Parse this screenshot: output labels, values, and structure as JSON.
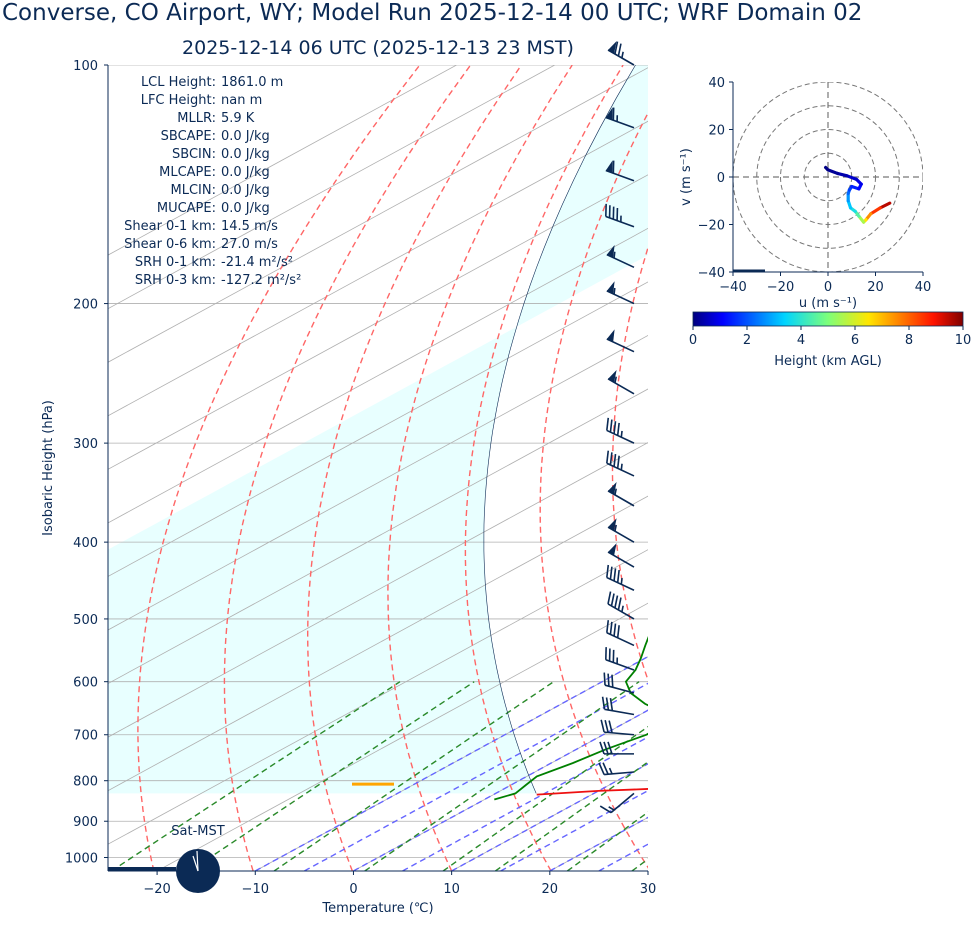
{
  "title": "Converse, CO Airport, WY; Model Run 2025-12-14 00 UTC; WRF Domain 02",
  "subtitle": "2025-12-14 06 UTC  (2025-12-13 23 MST)",
  "colors": {
    "temperature": "#ee1111",
    "dewpoint": "#008000",
    "dry_adiabat": "#ff6666",
    "moist_adiabat": "#6666ff",
    "mixing_ratio": "#2a8a2a",
    "parcel_shade": "#e8ffff",
    "lcl_marker": "#ffa500",
    "text": "#0b2a55"
  },
  "indices": [
    {
      "label": "LCL Height:",
      "value": "1861.0 m"
    },
    {
      "label": "LFC Height:",
      "value": "nan m"
    },
    {
      "label": "MLLR:",
      "value": "5.9 K"
    },
    {
      "label": "SBCAPE:",
      "value": "0.0 J/kg"
    },
    {
      "label": "SBCIN:",
      "value": "0.0 J/kg"
    },
    {
      "label": "MLCAPE:",
      "value": "0.0 J/kg"
    },
    {
      "label": "MLCIN:",
      "value": "0.0 J/kg"
    },
    {
      "label": "MUCAPE:",
      "value": "0.0 J/kg"
    },
    {
      "label": "Shear 0-1 km:",
      "value": "14.5 m/s"
    },
    {
      "label": "Shear 0-6 km:",
      "value": "27.0 m/s"
    },
    {
      "label": "SRH 0-1 km:",
      "value": "-21.4 m²/s²"
    },
    {
      "label": "SRH 0-3 km:",
      "value": "-127.2 m²/s²"
    }
  ],
  "clock_label": "Sat-MST",
  "chart_data": [
    {
      "type": "line",
      "subtype": "skew-T log-p",
      "xlabel": "Temperature (℃)",
      "ylabel": "Isobaric Height (hPa)",
      "xlim": [
        -25,
        30
      ],
      "ylim": [
        1040,
        100
      ],
      "y_scale": "log",
      "x_ticks": [
        -20,
        -10,
        0,
        10,
        20,
        30
      ],
      "y_ticks": [
        100,
        200,
        300,
        400,
        500,
        600,
        700,
        800,
        900,
        1000
      ],
      "series": [
        {
          "role": "temperature",
          "points": [
            [
              833,
              4.4
            ],
            [
              824,
              10
            ],
            [
              818,
              16
            ],
            [
              808,
              17.3
            ],
            [
              785,
              17.5
            ],
            [
              760,
              16.5
            ],
            [
              735,
              15
            ],
            [
              710,
              14.8
            ],
            [
              680,
              14.6
            ],
            [
              650,
              14.4
            ],
            [
              630,
              14.3
            ],
            [
              600,
              14.0
            ],
            [
              575,
              13.3
            ],
            [
              550,
              12.5
            ],
            [
              520,
              11.5
            ],
            [
              490,
              10.3
            ],
            [
              460,
              9.2
            ],
            [
              440,
              7.9
            ],
            [
              420,
              6.3
            ],
            [
              400,
              4.6
            ],
            [
              370,
              2.3
            ],
            [
              340,
              -0.7
            ],
            [
              310,
              -3.8
            ],
            [
              280,
              -7.1
            ],
            [
              250,
              -10.8
            ],
            [
              225,
              -13.2
            ],
            [
              210,
              -15.2
            ],
            [
              195,
              -17.7
            ],
            [
              180,
              -17.8
            ],
            [
              165,
              -15.8
            ],
            [
              150,
              -13.3
            ],
            [
              135,
              -10.6
            ],
            [
              120,
              -7.4
            ],
            [
              110,
              -4.8
            ],
            [
              100,
              -3.5
            ]
          ]
        },
        {
          "role": "dewpoint",
          "points": [
            [
              845,
              1.0
            ],
            [
              830,
              2.0
            ],
            [
              810,
              1.5
            ],
            [
              790,
              1.0
            ],
            [
              760,
              2.2
            ],
            [
              730,
              3.0
            ],
            [
              700,
              4.4
            ],
            [
              680,
              4.3
            ],
            [
              660,
              2.8
            ],
            [
              640,
              -1.5
            ],
            [
              620,
              -5.0
            ],
            [
              600,
              -7.6
            ],
            [
              580,
              -8.8
            ],
            [
              560,
              -10.5
            ],
            [
              540,
              -12.4
            ],
            [
              520,
              -14.3
            ],
            [
              500,
              -16.3
            ],
            [
              480,
              -17.0
            ],
            [
              455,
              -15.8
            ],
            [
              430,
              -13.0
            ],
            [
              400,
              -9.0
            ],
            [
              380,
              -5.8
            ],
            [
              360,
              -5.7
            ],
            [
              340,
              -7.6
            ],
            [
              310,
              -10.4
            ],
            [
              280,
              -13.7
            ],
            [
              260,
              -16.2
            ],
            [
              240,
              -19.0
            ],
            [
              220,
              -21.8
            ],
            [
              200,
              -24.6
            ],
            [
              180,
              -27.8
            ],
            [
              160,
              -31.7
            ],
            [
              140,
              -34.3
            ],
            [
              125,
              -34.8
            ],
            [
              110,
              -34.8
            ],
            [
              100,
              -35.3
            ]
          ]
        }
      ],
      "lcl_pressure": 808,
      "wind_barbs": [
        {
          "p": 100,
          "dir": 300,
          "kt": 75
        },
        {
          "p": 120,
          "dir": 290,
          "kt": 65
        },
        {
          "p": 140,
          "dir": 290,
          "kt": 60
        },
        {
          "p": 160,
          "dir": 290,
          "kt": 45
        },
        {
          "p": 180,
          "dir": 295,
          "kt": 55
        },
        {
          "p": 200,
          "dir": 295,
          "kt": 55
        },
        {
          "p": 230,
          "dir": 295,
          "kt": 50
        },
        {
          "p": 260,
          "dir": 300,
          "kt": 55
        },
        {
          "p": 300,
          "dir": 295,
          "kt": 45
        },
        {
          "p": 330,
          "dir": 295,
          "kt": 45
        },
        {
          "p": 360,
          "dir": 300,
          "kt": 55
        },
        {
          "p": 400,
          "dir": 300,
          "kt": 55
        },
        {
          "p": 430,
          "dir": 300,
          "kt": 50
        },
        {
          "p": 460,
          "dir": 295,
          "kt": 45
        },
        {
          "p": 500,
          "dir": 300,
          "kt": 45
        },
        {
          "p": 540,
          "dir": 295,
          "kt": 40
        },
        {
          "p": 580,
          "dir": 290,
          "kt": 35
        },
        {
          "p": 620,
          "dir": 285,
          "kt": 30
        },
        {
          "p": 660,
          "dir": 280,
          "kt": 30
        },
        {
          "p": 700,
          "dir": 275,
          "kt": 30
        },
        {
          "p": 740,
          "dir": 270,
          "kt": 30
        },
        {
          "p": 780,
          "dir": 265,
          "kt": 25
        },
        {
          "p": 830,
          "dir": 230,
          "kt": 15
        }
      ]
    },
    {
      "type": "line",
      "subtype": "hodograph",
      "xlabel": "u (m s⁻¹)",
      "ylabel": "v (m s⁻¹)",
      "xlim": [
        -40,
        40
      ],
      "ylim": [
        -40,
        40
      ],
      "ticks": [
        -40,
        -20,
        0,
        20,
        40
      ],
      "rings": [
        10,
        20,
        30,
        40
      ],
      "points": [
        [
          26,
          -11,
          10
        ],
        [
          22,
          -13,
          9
        ],
        [
          18,
          -15.5,
          8
        ],
        [
          16,
          -18,
          7
        ],
        [
          15,
          -19,
          6
        ],
        [
          13,
          -16.5,
          5
        ],
        [
          11.5,
          -14.5,
          4
        ],
        [
          9.5,
          -13,
          3.5
        ],
        [
          8.5,
          -10,
          3
        ],
        [
          8.5,
          -7,
          2.5
        ],
        [
          9,
          -5.5,
          2
        ],
        [
          10,
          -4,
          1.6
        ],
        [
          13,
          -5,
          1.3
        ],
        [
          14,
          -3,
          1
        ],
        [
          12,
          -1,
          0.8
        ],
        [
          8,
          0.5,
          0.5
        ],
        [
          4,
          1.5,
          0.3
        ],
        [
          0,
          3,
          0.1
        ],
        [
          -1,
          4,
          0
        ]
      ],
      "colorbar": {
        "label": "Height (km AGL)",
        "range": [
          0,
          10
        ],
        "ticks": [
          0,
          2,
          4,
          6,
          8,
          10
        ],
        "colormap": "jet"
      }
    }
  ]
}
